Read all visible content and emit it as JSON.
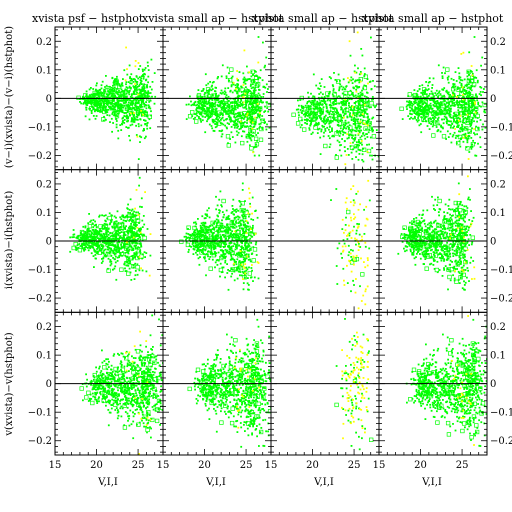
{
  "colors": {
    "background": "#ffffff",
    "axes": "#000000",
    "points_primary": "#00ff00",
    "points_secondary": "#ffff00"
  },
  "chart_data": {
    "type": "scatter",
    "grid": false,
    "layout": {
      "rows": 3,
      "cols": 4
    },
    "column_titles": [
      "xvista psf − hstphot",
      "xvista small ap − hstphot",
      "xvista small ap − hstphot",
      "xvista small ap − hstphot"
    ],
    "row_ylabels": [
      "(v−i)(xvista)−(v−i)(hstphot)",
      "i(xvista)−i(hstphot)",
      "v(xvista)−v(hstphot)"
    ],
    "xlabel": "V,I,I",
    "xlim": [
      15,
      28
    ],
    "ylim": [
      -0.25,
      0.25
    ],
    "xticks": [
      15,
      20,
      25
    ],
    "yticks": [
      -0.2,
      -0.1,
      0,
      0.1,
      0.2
    ],
    "ytick_labels": [
      "−0.2",
      "−0.1",
      "0",
      "0.1",
      "0.2"
    ],
    "reference_line_y": 0,
    "series": [
      {
        "color": "green",
        "marker": "dot",
        "note_density": "dense cloud centered on y≈0, spreading with magnitude"
      },
      {
        "color": "yellow",
        "marker": "dot",
        "note_density": "sparse points mostly at V>24"
      }
    ],
    "panels": [
      {
        "row": 0,
        "col": 0,
        "density": 1.0,
        "center": 22.5,
        "halfwidth": 3.5,
        "mean_y": -0.01,
        "scatter": 0.025,
        "tail_x": 25.5,
        "yellow": 0.05
      },
      {
        "row": 0,
        "col": 1,
        "density": 1.0,
        "center": 23.0,
        "halfwidth": 4.0,
        "mean_y": -0.03,
        "scatter": 0.03,
        "tail_x": 25.8,
        "yellow": 0.12
      },
      {
        "row": 0,
        "col": 2,
        "density": 0.9,
        "center": 23.0,
        "halfwidth": 4.0,
        "mean_y": -0.05,
        "scatter": 0.035,
        "tail_x": 25.8,
        "yellow": 0.15
      },
      {
        "row": 0,
        "col": 3,
        "density": 1.0,
        "center": 23.0,
        "halfwidth": 4.0,
        "mean_y": -0.03,
        "scatter": 0.03,
        "tail_x": 25.8,
        "yellow": 0.1
      },
      {
        "row": 1,
        "col": 0,
        "density": 1.0,
        "center": 21.5,
        "halfwidth": 3.5,
        "mean_y": 0.005,
        "scatter": 0.03,
        "tail_x": 24.5,
        "yellow": 0.04
      },
      {
        "row": 1,
        "col": 1,
        "density": 1.0,
        "center": 22.0,
        "halfwidth": 3.5,
        "mean_y": 0.005,
        "scatter": 0.035,
        "tail_x": 25.0,
        "yellow": 0.12
      },
      {
        "row": 1,
        "col": 2,
        "density": 0.06,
        "center": 24.5,
        "halfwidth": 1.5,
        "mean_y": 0.0,
        "scatter": 0.05,
        "tail_x": 25.0,
        "yellow": 0.5
      },
      {
        "row": 1,
        "col": 3,
        "density": 1.0,
        "center": 22.0,
        "halfwidth": 3.5,
        "mean_y": 0.005,
        "scatter": 0.035,
        "tail_x": 25.0,
        "yellow": 0.1
      },
      {
        "row": 2,
        "col": 0,
        "density": 1.0,
        "center": 23.5,
        "halfwidth": 4.0,
        "mean_y": -0.01,
        "scatter": 0.03,
        "tail_x": 26.0,
        "yellow": 0.08
      },
      {
        "row": 2,
        "col": 1,
        "density": 1.0,
        "center": 23.5,
        "halfwidth": 4.0,
        "mean_y": -0.01,
        "scatter": 0.035,
        "tail_x": 26.0,
        "yellow": 0.12
      },
      {
        "row": 2,
        "col": 2,
        "density": 0.08,
        "center": 25.0,
        "halfwidth": 1.5,
        "mean_y": 0.0,
        "scatter": 0.05,
        "tail_x": 25.5,
        "yellow": 0.6
      },
      {
        "row": 2,
        "col": 3,
        "density": 1.0,
        "center": 23.5,
        "halfwidth": 4.0,
        "mean_y": -0.01,
        "scatter": 0.035,
        "tail_x": 26.0,
        "yellow": 0.12
      }
    ]
  }
}
